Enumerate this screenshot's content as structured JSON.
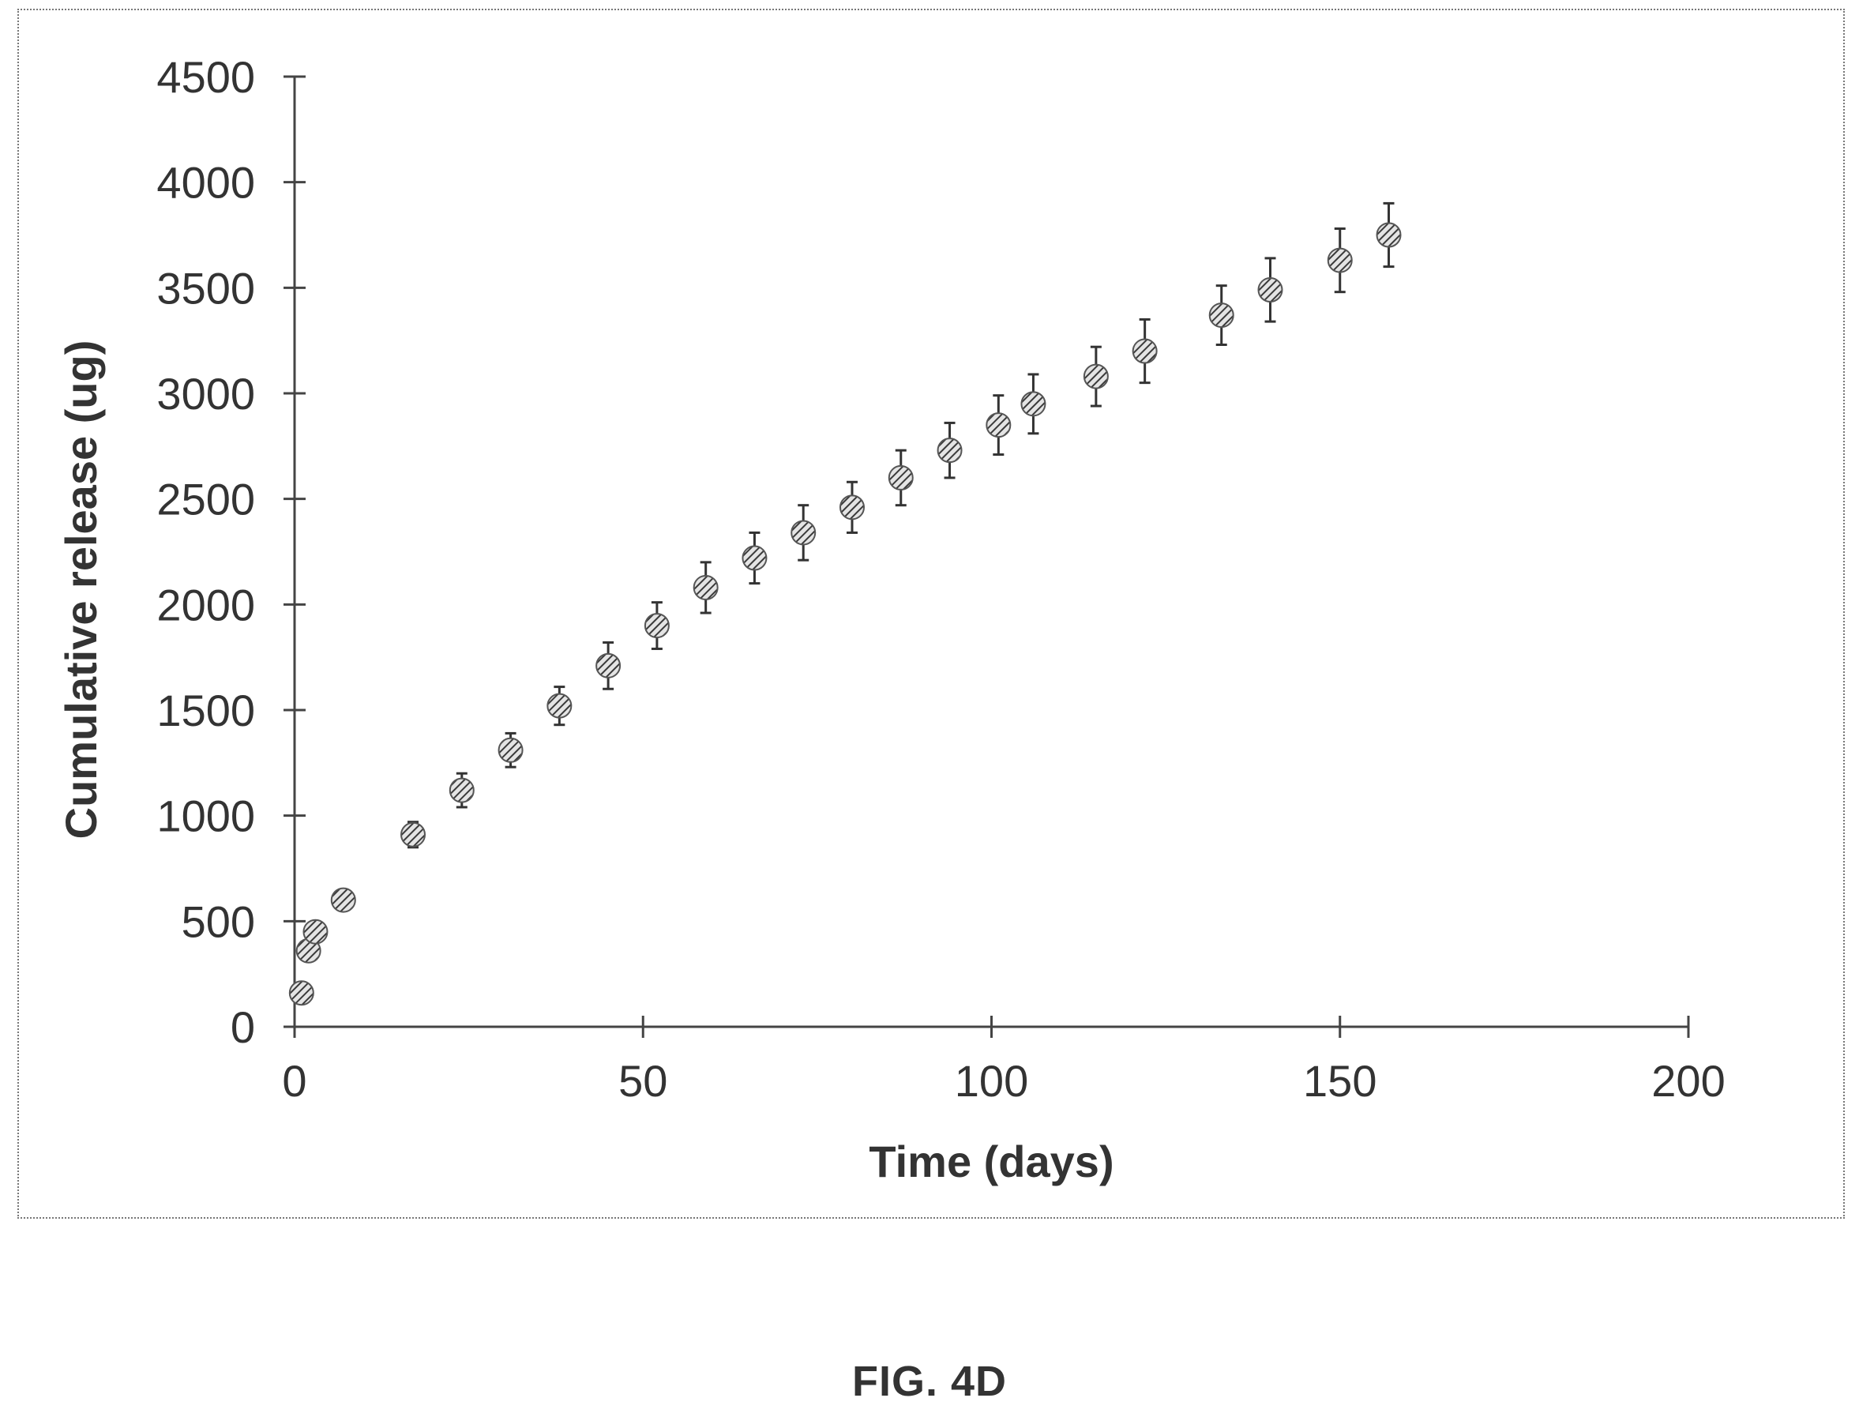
{
  "caption": "FIG. 4D",
  "chart_data": {
    "type": "scatter",
    "title": "",
    "xlabel": "Time (days)",
    "ylabel": "Cumulative release (ug)",
    "xlim": [
      0,
      200
    ],
    "ylim": [
      0,
      4500
    ],
    "x_ticks": [
      0,
      50,
      100,
      150,
      200
    ],
    "x_tick_labels": [
      "0",
      "50",
      "100",
      "150",
      "200"
    ],
    "y_ticks": [
      0,
      500,
      1000,
      1500,
      2000,
      2500,
      3000,
      3500,
      4000,
      4500
    ],
    "y_tick_labels": [
      "0",
      "500",
      "1000",
      "1500",
      "2000",
      "2500",
      "3000",
      "3500",
      "4000",
      "4500"
    ],
    "grid": false,
    "marker_color": "#555555",
    "series": [
      {
        "x": [
          1,
          2,
          3,
          7,
          17,
          24,
          31,
          38,
          45,
          52,
          59,
          66,
          73,
          80,
          87,
          94,
          101,
          106,
          115,
          122,
          133,
          140,
          150,
          157
        ],
        "y": [
          160,
          360,
          450,
          600,
          910,
          1120,
          1310,
          1520,
          1710,
          1900,
          2080,
          2220,
          2340,
          2460,
          2600,
          2730,
          2850,
          2950,
          3080,
          3200,
          3370,
          3490,
          3630,
          3750
        ],
        "error": [
          20,
          25,
          30,
          25,
          60,
          80,
          80,
          90,
          110,
          110,
          120,
          120,
          130,
          120,
          130,
          130,
          140,
          140,
          140,
          150,
          140,
          150,
          150,
          150
        ]
      }
    ]
  }
}
